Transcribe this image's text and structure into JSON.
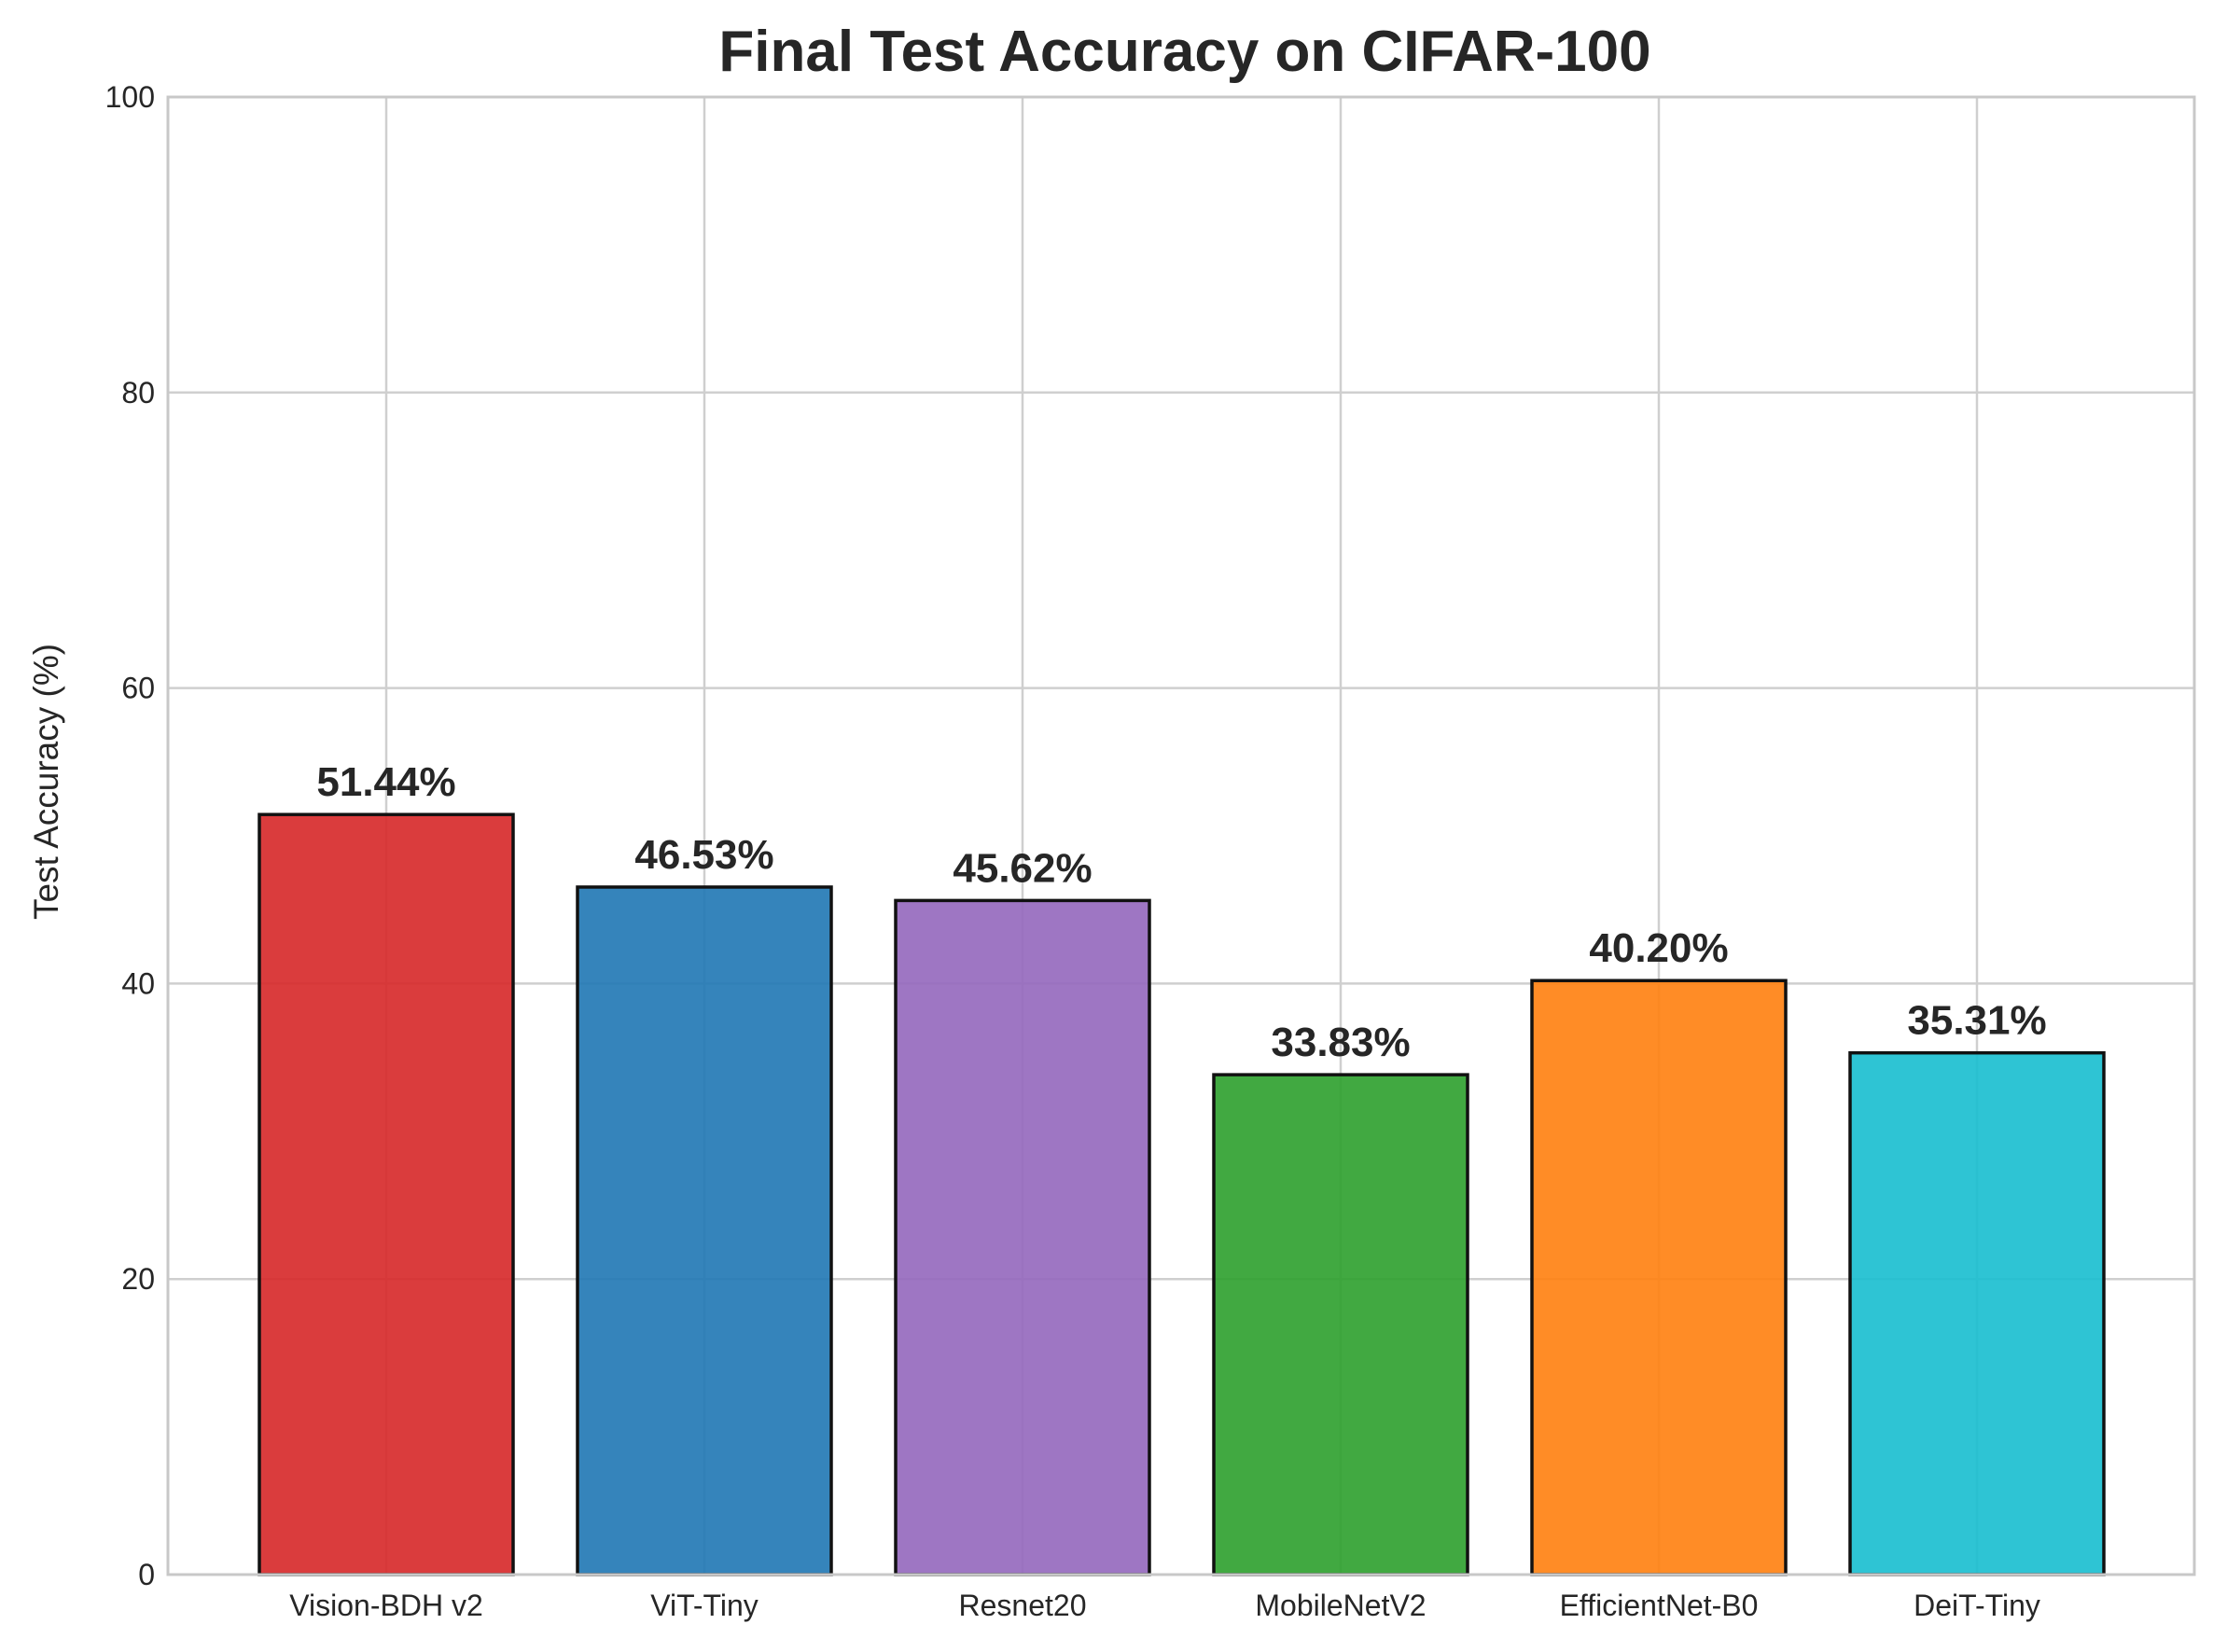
{
  "chart_data": {
    "type": "bar",
    "title": "Final Test Accuracy on CIFAR-100",
    "xlabel": "",
    "ylabel": "Test Accuracy (%)",
    "ylim": [
      0,
      100
    ],
    "yticks": [
      0,
      20,
      40,
      60,
      80,
      100
    ],
    "grid": true,
    "categories": [
      "Vision-BDH v2",
      "ViT-Tiny",
      "Resnet20",
      "MobileNetV2",
      "EfficientNet-B0",
      "DeiT-Tiny"
    ],
    "values": [
      51.44,
      46.53,
      45.62,
      33.83,
      40.2,
      35.31
    ],
    "data_labels": [
      "51.44%",
      "46.53%",
      "45.62%",
      "33.83%",
      "40.20%",
      "35.31%"
    ],
    "colors": [
      "#d62728",
      "#1f77b4",
      "#9467bd",
      "#2ca02c",
      "#ff7f0e",
      "#17becf"
    ]
  }
}
